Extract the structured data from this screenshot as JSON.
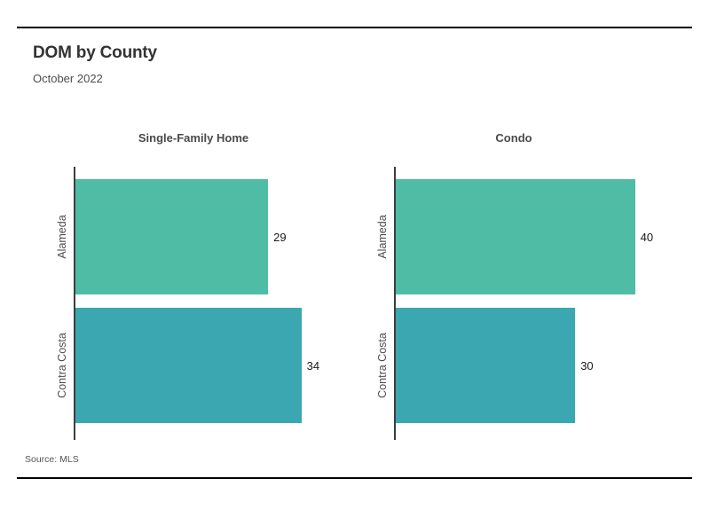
{
  "header": {
    "title": "DOM by County",
    "subtitle": "October 2022"
  },
  "footer": {
    "source": "Source: MLS"
  },
  "colors": {
    "alameda_bar": "#4fbca6",
    "contra_costa_bar": "#3aa7b1",
    "axis_line": "#3d3d3d",
    "rule": "#000000"
  },
  "chart_data": [
    {
      "type": "bar",
      "orientation": "horizontal",
      "title": "Single-Family Home",
      "categories": [
        "Alameda",
        "Contra Costa"
      ],
      "values": [
        29,
        34
      ],
      "xlim": [
        0,
        45
      ],
      "grid": false,
      "legend": false,
      "bar_colors": [
        "#4fbca6",
        "#3aa7b1"
      ],
      "value_labels": [
        "29",
        "34"
      ]
    },
    {
      "type": "bar",
      "orientation": "horizontal",
      "title": "Condo",
      "categories": [
        "Alameda",
        "Contra Costa"
      ],
      "values": [
        40,
        30
      ],
      "xlim": [
        0,
        50
      ],
      "grid": false,
      "legend": false,
      "bar_colors": [
        "#4fbca6",
        "#3aa7b1"
      ],
      "value_labels": [
        "40",
        "30"
      ]
    }
  ]
}
